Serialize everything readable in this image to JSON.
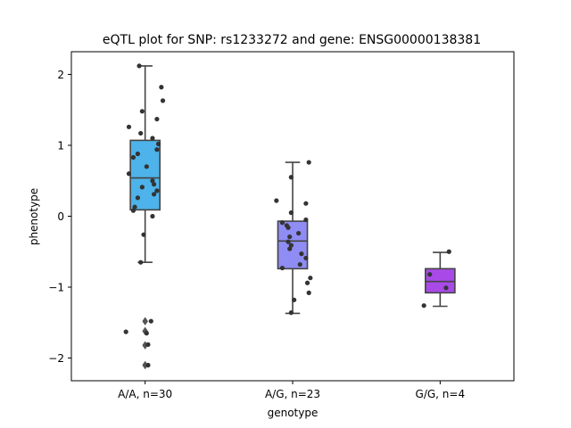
{
  "chart_data": {
    "type": "box",
    "title": "eQTL plot for SNP: rs1233272 and gene: ENSG00000138381",
    "xlabel": "genotype",
    "ylabel": "phenotype",
    "ylim": [
      -2.32,
      2.32
    ],
    "yticks": [
      -2,
      -1,
      0,
      1,
      2
    ],
    "grid": false,
    "categories": [
      "A/A, n=30",
      "A/G, n=23",
      "G/G, n=4"
    ],
    "colors": [
      "#4db3ea",
      "#8f8cf4",
      "#a94ae8"
    ],
    "boxes": [
      {
        "category": "A/A, n=30",
        "whisker_low": -0.65,
        "q1": 0.09,
        "median": 0.54,
        "q3": 1.07,
        "whisker_high": 2.12,
        "outliers": [
          -1.48,
          -1.62,
          -1.82,
          -2.1
        ]
      },
      {
        "category": "A/G, n=23",
        "whisker_low": -1.37,
        "q1": -0.74,
        "median": -0.35,
        "q3": -0.07,
        "whisker_high": 0.76,
        "outliers": []
      },
      {
        "category": "G/G, n=4",
        "whisker_low": -1.27,
        "q1": -1.08,
        "median": -0.92,
        "q3": -0.74,
        "whisker_high": -0.51,
        "outliers": []
      }
    ],
    "points": [
      [
        {
          "x": -0.04,
          "y": 2.12
        },
        {
          "x": 0.11,
          "y": 1.82
        },
        {
          "x": 0.12,
          "y": 1.63
        },
        {
          "x": -0.02,
          "y": 1.48
        },
        {
          "x": 0.08,
          "y": 1.37
        },
        {
          "x": -0.11,
          "y": 1.26
        },
        {
          "x": -0.03,
          "y": 1.17
        },
        {
          "x": 0.05,
          "y": 1.1
        },
        {
          "x": 0.09,
          "y": 1.02
        },
        {
          "x": 0.08,
          "y": 0.94
        },
        {
          "x": -0.05,
          "y": 0.88
        },
        {
          "x": -0.08,
          "y": 0.83
        },
        {
          "x": 0.01,
          "y": 0.7
        },
        {
          "x": -0.11,
          "y": 0.6
        },
        {
          "x": 0.05,
          "y": 0.5
        },
        {
          "x": 0.06,
          "y": 0.45
        },
        {
          "x": -0.02,
          "y": 0.41
        },
        {
          "x": 0.08,
          "y": 0.36
        },
        {
          "x": 0.06,
          "y": 0.31
        },
        {
          "x": -0.05,
          "y": 0.26
        },
        {
          "x": -0.07,
          "y": 0.13
        },
        {
          "x": -0.08,
          "y": 0.08
        },
        {
          "x": 0.05,
          "y": 0.0
        },
        {
          "x": -0.01,
          "y": -0.26
        },
        {
          "x": -0.03,
          "y": -0.65
        },
        {
          "x": 0.04,
          "y": -1.48
        },
        {
          "x": -0.13,
          "y": -1.63
        },
        {
          "x": 0.01,
          "y": -1.65
        },
        {
          "x": 0.02,
          "y": -1.81
        },
        {
          "x": 0.02,
          "y": -2.1
        }
      ],
      [
        {
          "x": -0.11,
          "y": 0.22
        },
        {
          "x": -0.01,
          "y": 0.05
        },
        {
          "x": 0.11,
          "y": 0.76
        },
        {
          "x": -0.01,
          "y": 0.55
        },
        {
          "x": 0.09,
          "y": 0.18
        },
        {
          "x": 0.09,
          "y": -0.05
        },
        {
          "x": -0.07,
          "y": -0.09
        },
        {
          "x": -0.04,
          "y": -0.13
        },
        {
          "x": -0.03,
          "y": -0.16
        },
        {
          "x": -0.02,
          "y": -0.29
        },
        {
          "x": 0.04,
          "y": -0.24
        },
        {
          "x": -0.03,
          "y": -0.36
        },
        {
          "x": -0.01,
          "y": -0.41
        },
        {
          "x": -0.02,
          "y": -0.46
        },
        {
          "x": 0.06,
          "y": -0.53
        },
        {
          "x": 0.09,
          "y": -0.59
        },
        {
          "x": 0.05,
          "y": -0.68
        },
        {
          "x": -0.07,
          "y": -0.73
        },
        {
          "x": 0.12,
          "y": -0.87
        },
        {
          "x": 0.1,
          "y": -0.94
        },
        {
          "x": 0.11,
          "y": -1.08
        },
        {
          "x": 0.01,
          "y": -1.18
        },
        {
          "x": -0.01,
          "y": -1.36
        }
      ],
      [
        {
          "x": 0.06,
          "y": -0.5
        },
        {
          "x": -0.07,
          "y": -0.82
        },
        {
          "x": 0.04,
          "y": -1.01
        },
        {
          "x": -0.11,
          "y": -1.26
        }
      ]
    ]
  }
}
